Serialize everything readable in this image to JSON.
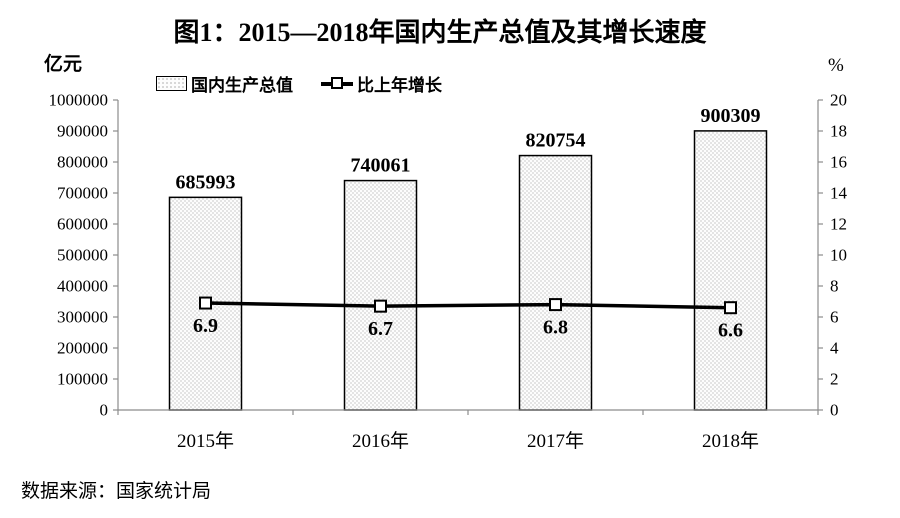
{
  "chart": {
    "title": "图1：2015—2018年国内生产总值及其增长速度",
    "left_axis_unit": "亿元",
    "right_axis_unit": "%",
    "legend": [
      {
        "label": "国内生产总值"
      },
      {
        "label": "比上年增长"
      }
    ],
    "source": "数据来源：国家统计局"
  },
  "chart_data": {
    "type": "bar",
    "title": "图1：2015—2018年国内生产总值及其增长速度",
    "categories": [
      "2015年",
      "2016年",
      "2017年",
      "2018年"
    ],
    "series": [
      {
        "name": "国内生产总值",
        "type": "bar",
        "axis": "left",
        "unit": "亿元",
        "values": [
          685993,
          740061,
          820754,
          900309
        ]
      },
      {
        "name": "比上年增长",
        "type": "line",
        "axis": "right",
        "unit": "%",
        "values": [
          6.9,
          6.7,
          6.8,
          6.6
        ]
      }
    ],
    "left_axis": {
      "label": "亿元",
      "min": 0,
      "max": 1000000,
      "step": 100000
    },
    "right_axis": {
      "label": "%",
      "min": 0,
      "max": 20,
      "step": 2
    },
    "grid": false,
    "legend_position": "top",
    "source": "数据来源：国家统计局",
    "colors": {
      "bar_fill": "#fdfdfd",
      "bar_dot": "#a8a8a8",
      "bar_border": "#000000",
      "line": "#000000",
      "marker_fill": "#ffffff",
      "axis": "#8c8c8c",
      "text": "#000000"
    }
  }
}
